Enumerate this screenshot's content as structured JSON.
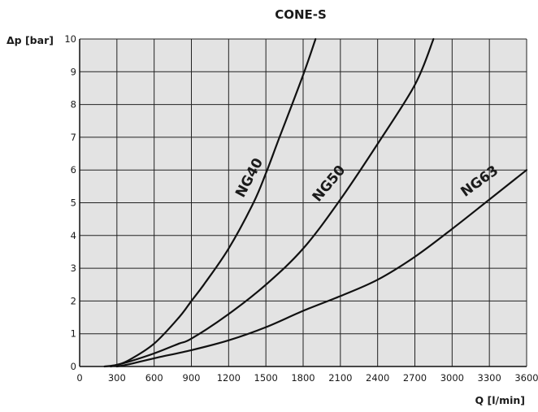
{
  "chart_data": {
    "type": "line",
    "title": "CONE-S",
    "xlabel": "Q [l/min]",
    "ylabel": "Δp [bar]",
    "xlim": [
      0,
      3600
    ],
    "ylim": [
      0,
      10
    ],
    "xticks": [
      "0",
      "300",
      "600",
      "900",
      "1200",
      "1500",
      "1800",
      "2100",
      "2400",
      "2700",
      "3000",
      "3300",
      "3600"
    ],
    "yticks": [
      "0",
      "1",
      "2",
      "3",
      "4",
      "5",
      "6",
      "7",
      "8",
      "9",
      "10"
    ],
    "grid": true,
    "series": [
      {
        "name": "NG40",
        "x": [
          200,
          300,
          400,
          600,
          800,
          900,
          1000,
          1200,
          1400,
          1500,
          1600,
          1800,
          1900
        ],
        "y": [
          0,
          0.05,
          0.2,
          0.7,
          1.5,
          2.0,
          2.5,
          3.6,
          5.0,
          5.9,
          6.9,
          8.9,
          10
        ]
      },
      {
        "name": "NG50",
        "x": [
          250,
          300,
          400,
          600,
          800,
          900,
          1200,
          1500,
          1800,
          2100,
          2400,
          2700,
          2850
        ],
        "y": [
          0,
          0.05,
          0.15,
          0.4,
          0.7,
          0.85,
          1.6,
          2.5,
          3.6,
          5.1,
          6.8,
          8.6,
          10
        ]
      },
      {
        "name": "NG63",
        "x": [
          300,
          400,
          600,
          900,
          1200,
          1500,
          1800,
          2100,
          2400,
          2700,
          3000,
          3300,
          3600
        ],
        "y": [
          0,
          0.07,
          0.25,
          0.5,
          0.8,
          1.2,
          1.7,
          2.15,
          2.65,
          3.35,
          4.2,
          5.1,
          6.0
        ]
      }
    ]
  }
}
